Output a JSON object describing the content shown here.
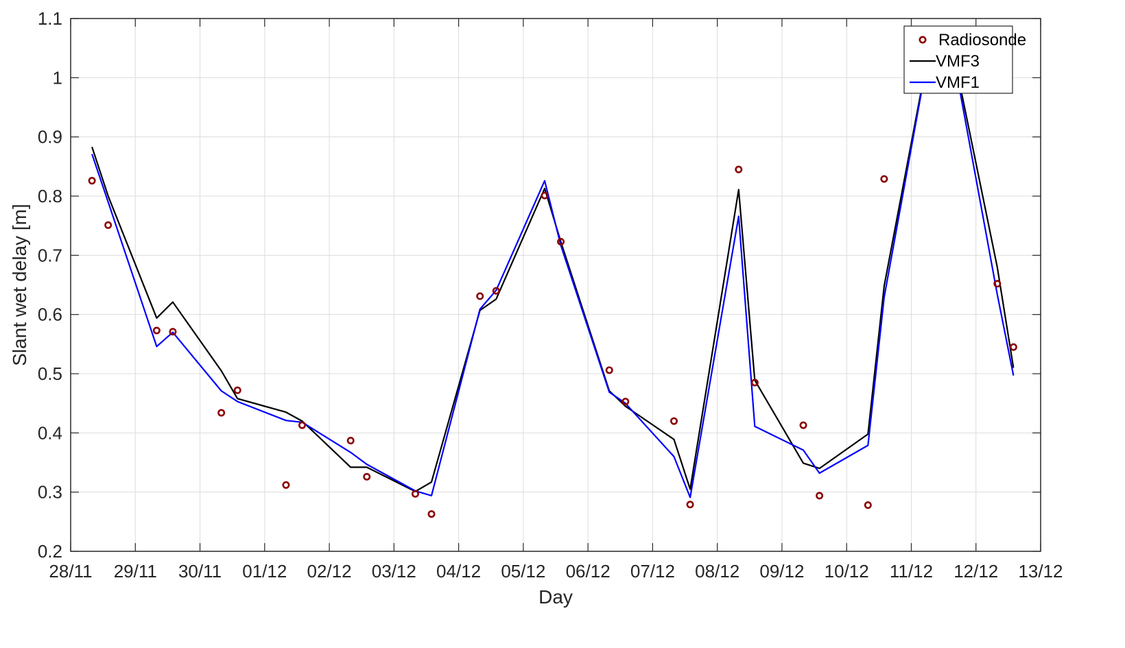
{
  "chart_data": {
    "type": "line",
    "xlabel": "Day",
    "ylabel": "Slant wet delay [m]",
    "x_ticks": [
      "28/11",
      "29/11",
      "30/11",
      "01/12",
      "02/12",
      "03/12",
      "04/12",
      "05/12",
      "06/12",
      "07/12",
      "08/12",
      "09/12",
      "10/12",
      "11/12",
      "12/12",
      "13/12"
    ],
    "xlim": [
      0,
      15
    ],
    "ylim": [
      0.2,
      1.1
    ],
    "y_ticks": [
      "0.2",
      "0.3",
      "0.4",
      "0.5",
      "0.6",
      "0.7",
      "0.8",
      "0.9",
      "1",
      "1.1"
    ],
    "y_tick_values": [
      0.2,
      0.3,
      0.4,
      0.5,
      0.6,
      0.7,
      0.8,
      0.9,
      1.0,
      1.1
    ],
    "grid": true,
    "legend_position": "top-right",
    "series": [
      {
        "name": "Radiosonde",
        "kind": "markers",
        "color": "#8b0000",
        "x": [
          0.33,
          0.58,
          1.33,
          1.58,
          2.33,
          2.58,
          3.33,
          3.58,
          4.33,
          4.58,
          5.33,
          5.58,
          6.33,
          6.58,
          7.33,
          7.58,
          8.33,
          8.58,
          9.33,
          9.58,
          10.33,
          10.58,
          11.33,
          11.58,
          12.33,
          12.58,
          13.33,
          13.58,
          14.33,
          14.58
        ],
        "y": [
          0.826,
          0.751,
          0.573,
          0.571,
          0.434,
          0.472,
          0.312,
          0.413,
          0.387,
          0.326,
          0.297,
          0.263,
          0.631,
          0.64,
          0.801,
          0.723,
          0.506,
          0.453,
          0.42,
          0.279,
          0.845,
          0.485,
          0.413,
          0.294,
          0.278,
          0.829,
          1.08,
          1.08,
          0.652,
          0.545
        ]
      },
      {
        "name": "VMF3",
        "kind": "line",
        "color": "#000000",
        "x": [
          0.33,
          0.58,
          1.33,
          1.58,
          2.33,
          2.58,
          3.33,
          3.58,
          4.33,
          4.58,
          5.33,
          5.58,
          6.33,
          6.58,
          7.33,
          7.58,
          8.33,
          8.58,
          9.33,
          9.58,
          10.33,
          10.58,
          11.33,
          11.58,
          12.33,
          12.58,
          13.33,
          13.58,
          14.33,
          14.58
        ],
        "y": [
          0.883,
          0.8,
          0.594,
          0.621,
          0.505,
          0.458,
          0.435,
          0.42,
          0.342,
          0.342,
          0.301,
          0.317,
          0.607,
          0.626,
          0.813,
          0.723,
          0.471,
          0.445,
          0.389,
          0.305,
          0.811,
          0.489,
          0.349,
          0.34,
          0.398,
          0.648,
          1.08,
          1.08,
          0.68,
          0.51
        ]
      },
      {
        "name": "VMF1",
        "kind": "line",
        "color": "#0000ff",
        "x": [
          0.33,
          0.58,
          1.33,
          1.58,
          2.33,
          2.58,
          3.33,
          3.58,
          4.33,
          4.58,
          5.33,
          5.58,
          6.33,
          6.58,
          7.33,
          7.58,
          8.33,
          8.58,
          9.33,
          9.58,
          10.33,
          10.58,
          11.33,
          11.58,
          12.33,
          12.58,
          13.33,
          13.58,
          14.33,
          14.58
        ],
        "y": [
          0.871,
          0.79,
          0.546,
          0.57,
          0.471,
          0.453,
          0.421,
          0.418,
          0.367,
          0.347,
          0.302,
          0.294,
          0.609,
          0.641,
          0.826,
          0.717,
          0.469,
          0.45,
          0.36,
          0.291,
          0.766,
          0.411,
          0.371,
          0.332,
          0.379,
          0.629,
          1.08,
          1.08,
          0.634,
          0.497
        ]
      }
    ]
  }
}
